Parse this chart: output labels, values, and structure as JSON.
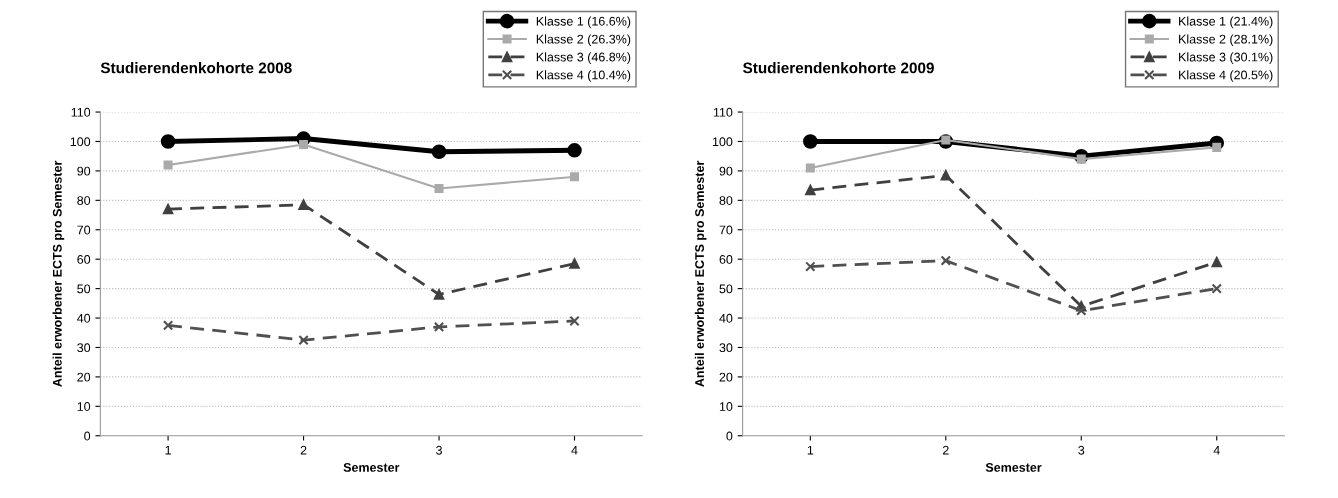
{
  "chart_data": [
    {
      "type": "line",
      "title": "Studierendenkohorte 2008",
      "xlabel": "Semester",
      "ylabel": "Anteil erworbener ECTS pro Semester",
      "categories": [
        "1",
        "2",
        "3",
        "4"
      ],
      "ylim": [
        0,
        110
      ],
      "yticks": [
        0,
        10,
        20,
        30,
        40,
        50,
        60,
        70,
        80,
        90,
        100,
        110
      ],
      "grid": "y",
      "legend": "top right",
      "series": [
        {
          "name": "Klasse 1 (16.6%)",
          "color": "#000000",
          "marker": "circle",
          "line_style": "solid",
          "values": [
            100,
            101,
            96.5,
            97
          ]
        },
        {
          "name": "Klasse 2 (26.3%)",
          "color": "#aaaaaa",
          "marker": "square",
          "line_style": "solid",
          "values": [
            92,
            99,
            84,
            88
          ]
        },
        {
          "name": "Klasse 3 (46.8%)",
          "color": "#404040",
          "marker": "triangle",
          "line_style": "dashed",
          "values": [
            77,
            78.5,
            48,
            58.5
          ]
        },
        {
          "name": "Klasse 4 (10.4%)",
          "color": "#505050",
          "marker": "cross",
          "line_style": "dashed",
          "values": [
            37.5,
            32.5,
            37,
            39
          ]
        }
      ]
    },
    {
      "type": "line",
      "title": "Studierendenkohorte 2009",
      "xlabel": "Semester",
      "ylabel": "Anteil erworbener ECTS pro Semester",
      "categories": [
        "1",
        "2",
        "3",
        "4"
      ],
      "ylim": [
        0,
        110
      ],
      "yticks": [
        0,
        10,
        20,
        30,
        40,
        50,
        60,
        70,
        80,
        90,
        100,
        110
      ],
      "grid": "y",
      "legend": "top right",
      "series": [
        {
          "name": "Klasse 1 (21.4%)",
          "color": "#000000",
          "marker": "circle",
          "line_style": "solid",
          "values": [
            100,
            100,
            95,
            99.5
          ]
        },
        {
          "name": "Klasse 2 (28.1%)",
          "color": "#aaaaaa",
          "marker": "square",
          "line_style": "solid",
          "values": [
            91,
            100.5,
            94,
            98
          ]
        },
        {
          "name": "Klasse 3 (30.1%)",
          "color": "#404040",
          "marker": "triangle",
          "line_style": "dashed",
          "values": [
            83.5,
            88.5,
            44,
            59
          ]
        },
        {
          "name": "Klasse 4 (20.5%)",
          "color": "#505050",
          "marker": "cross",
          "line_style": "dashed",
          "values": [
            57.5,
            59.5,
            42.5,
            50
          ]
        }
      ]
    }
  ]
}
